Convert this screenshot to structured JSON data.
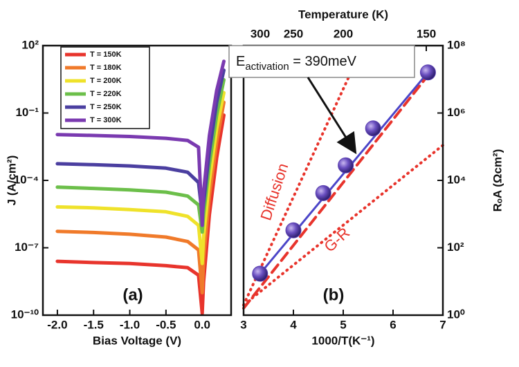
{
  "chart_data": [
    {
      "type": "line",
      "panel_label": "(a)",
      "xlabel": "Bias Voltage (V)",
      "ylabel": "J (A/cm²)",
      "log_y": true,
      "xlim": [
        -2.2,
        0.4
      ],
      "ylim": [
        1e-10,
        100
      ],
      "xticks": [
        {
          "value": -2,
          "label": "-2.0"
        },
        -1.5,
        {
          "value": -1,
          "label": "-1.0"
        },
        -0.5,
        {
          "value": 0,
          "label": "0.0"
        }
      ],
      "yticks": [
        {
          "value": 1e-10,
          "label": "10⁻¹⁰"
        },
        {
          "value": 1e-07,
          "label": "10⁻⁷"
        },
        {
          "value": 0.0001,
          "label": "10⁻⁴"
        },
        {
          "value": 0.1,
          "label": "10⁻¹"
        },
        {
          "value": 100,
          "label": "10²"
        }
      ],
      "legend": "upper left",
      "x": [
        -2.0,
        -1.5,
        -1.0,
        -0.5,
        -0.2,
        -0.05,
        0.0,
        0.02,
        0.1,
        0.2,
        0.3
      ],
      "series": [
        {
          "name": "T = 150K",
          "color": "#e8342c",
          "values": [
            2.5e-08,
            2.2e-08,
            2e-08,
            1.6e-08,
            1.3e-08,
            6e-09,
            1.2e-10,
            3e-09,
            3e-06,
            0.001,
            0.08
          ]
        },
        {
          "name": "T = 180K",
          "color": "#f07a2a",
          "values": [
            5.4e-07,
            4.8e-07,
            4e-07,
            3e-07,
            1.9e-07,
            8e-08,
            1e-09,
            3e-08,
            2e-05,
            0.005,
            0.3
          ]
        },
        {
          "name": "T = 200K",
          "color": "#efe22a",
          "values": [
            6.6e-06,
            6e-06,
            5e-06,
            4e-06,
            2.5e-06,
            1e-06,
            2e-08,
            3e-07,
            0.0001,
            0.02,
            0.8
          ]
        },
        {
          "name": "T = 220K",
          "color": "#6cbf4a",
          "values": [
            5e-05,
            4.4e-05,
            3.8e-05,
            3e-05,
            2e-05,
            8e-06,
            5e-07,
            3e-06,
            0.0005,
            0.08,
            3
          ]
        },
        {
          "name": "T = 250K",
          "color": "#4b3fa0",
          "values": [
            0.00055,
            0.0005,
            0.00044,
            0.00035,
            0.00023,
            8e-05,
            3e-06,
            1e-05,
            0.002,
            0.3,
            8
          ]
        },
        {
          "name": "T = 300K",
          "color": "#7a3ab0",
          "values": [
            0.011,
            0.01,
            0.009,
            0.0075,
            0.006,
            0.003,
            1e-06,
            3e-05,
            0.01,
            1,
            20
          ]
        }
      ]
    },
    {
      "type": "scatter",
      "panel_label": "(b)",
      "xlabel": "1000/T(K⁻¹)",
      "ylabel": "RₒA (Ωcm²)",
      "x2label": "Temperature (K)",
      "log_y": true,
      "xlim": [
        3,
        7
      ],
      "ylim": [
        1,
        100000000
      ],
      "xticks": [
        3,
        4,
        5,
        6,
        7
      ],
      "x2ticks": [
        300,
        250,
        200,
        150
      ],
      "yticks": [
        {
          "value": 1,
          "label": "10⁰"
        },
        {
          "value": 100,
          "label": "10²"
        },
        {
          "value": 10000,
          "label": "10⁴"
        },
        {
          "value": 1000000,
          "label": "10⁶"
        },
        {
          "value": 100000000,
          "label": "10⁸"
        }
      ],
      "points": {
        "color": "#5a3fb0",
        "x": [
          3.33,
          4.0,
          4.6,
          5.05,
          5.6,
          6.7
        ],
        "values": [
          17,
          330,
          4200,
          28000,
          350000,
          16000000
        ]
      },
      "fit": {
        "color": "#4b45c8",
        "x": [
          3.33,
          6.7
        ],
        "values": [
          17,
          16000000
        ]
      },
      "activation_fit": {
        "color": "#e8342c",
        "x": [
          3.0,
          6.7
        ],
        "values": [
          1.6,
          13000000
        ]
      },
      "diffusion": {
        "label": "Diffusion",
        "color": "#e8342c",
        "x": [
          3.0,
          5.26
        ],
        "values": [
          2,
          35000000
        ]
      },
      "gr": {
        "label": "G-R",
        "color": "#e8342c",
        "x": [
          3.0,
          7.0
        ],
        "values": [
          2,
          110000
        ]
      },
      "annotation": {
        "symbol": "E",
        "subscript": "activation",
        "text": " = 390meV"
      }
    }
  ]
}
